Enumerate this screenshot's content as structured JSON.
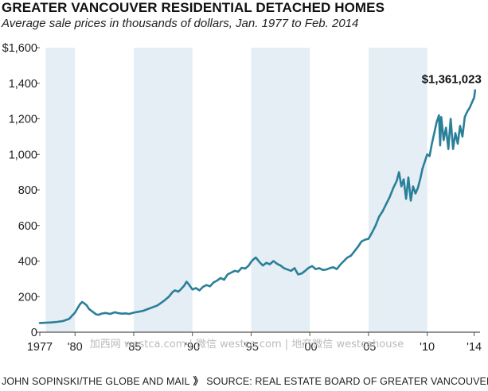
{
  "title": "GREATER VANCOUVER RESIDENTIAL DETACHED HOMES",
  "subtitle": "Average sale prices in thousands of dollars, Jan. 1977 to Feb. 2014",
  "footer": {
    "credit": "JOHN SOPINSKI/THE GLOBE AND MAIL",
    "separator": "》",
    "source": "SOURCE: REAL ESTATE BOARD OF GREATER VANCOUVER"
  },
  "watermark": "加西网 westca.com | 微信 westca.com | 地产微信 westcahouse",
  "colors": {
    "line": "#2a7f99",
    "band": "#e4eef4",
    "axis": "#555555",
    "gridline": "#eeeeee"
  },
  "chart_data": {
    "type": "line",
    "title": "GREATER VANCOUVER RESIDENTIAL DETACHED HOMES",
    "subtitle": "Average sale prices in thousands of dollars, Jan. 1977 to Feb. 2014",
    "xlabel": "",
    "ylabel": "",
    "xlim": [
      1977,
      2014.5
    ],
    "ylim": [
      0,
      1600
    ],
    "x_ticks": [
      1977,
      1980,
      1985,
      1990,
      1995,
      2000,
      2005,
      2010,
      2014
    ],
    "x_tick_labels": [
      "1977",
      "'80",
      "'85",
      "'90",
      "'95",
      "'00",
      "'05",
      "'10",
      "'14"
    ],
    "y_ticks": [
      0,
      200,
      400,
      600,
      800,
      1000,
      1200,
      1400,
      1600
    ],
    "y_tick_labels": [
      "0",
      "200",
      "400",
      "600",
      "800",
      "1,000",
      "1,200",
      "1,400",
      "$1,600"
    ],
    "grid": false,
    "shaded_periods": [
      [
        1977.5,
        1980
      ],
      [
        1985,
        1990
      ],
      [
        1995,
        2000
      ],
      [
        2005,
        2010
      ]
    ],
    "annotation": {
      "text": "$1,361,023",
      "x": 2014.08,
      "y": 1361.023
    },
    "series": [
      {
        "x": [
          1977.0,
          1977.5,
          1978.0,
          1978.5,
          1979.0,
          1979.5,
          1980.0,
          1980.4,
          1980.6,
          1980.8,
          1981.0,
          1981.2,
          1981.5,
          1981.8,
          1982.0,
          1982.3,
          1982.6,
          1983.0,
          1983.4,
          1983.7,
          1984.0,
          1984.3,
          1984.6,
          1985.0,
          1985.4,
          1985.8,
          1986.2,
          1986.6,
          1987.0,
          1987.3,
          1987.6,
          1988.0,
          1988.3,
          1988.5,
          1988.8,
          1989.0,
          1989.3,
          1989.5,
          1989.7,
          1990.0,
          1990.3,
          1990.6,
          1990.9,
          1991.2,
          1991.5,
          1991.8,
          1992.1,
          1992.4,
          1992.7,
          1993.0,
          1993.3,
          1993.6,
          1993.9,
          1994.2,
          1994.5,
          1994.8,
          1995.0,
          1995.2,
          1995.4,
          1995.7,
          1996.0,
          1996.3,
          1996.6,
          1996.9,
          1997.2,
          1997.5,
          1997.8,
          1998.1,
          1998.4,
          1998.7,
          1999.0,
          1999.3,
          1999.6,
          1999.9,
          2000.2,
          2000.5,
          2000.8,
          2001.1,
          2001.4,
          2001.7,
          2002.0,
          2002.3,
          2002.6,
          2002.9,
          2003.2,
          2003.5,
          2003.8,
          2004.1,
          2004.4,
          2004.7,
          2005.0,
          2005.3,
          2005.6,
          2005.9,
          2006.2,
          2006.5,
          2006.8,
          2007.1,
          2007.4,
          2007.6,
          2007.8,
          2008.0,
          2008.2,
          2008.4,
          2008.6,
          2008.8,
          2009.0,
          2009.2,
          2009.4,
          2009.6,
          2009.8,
          2010.0,
          2010.2,
          2010.4,
          2010.6,
          2010.8,
          2011.0,
          2011.1,
          2011.2,
          2011.4,
          2011.6,
          2011.8,
          2012.0,
          2012.2,
          2012.4,
          2012.6,
          2012.8,
          2013.0,
          2013.2,
          2013.4,
          2013.6,
          2013.8,
          2014.0,
          2014.08
        ],
        "values": [
          52,
          53,
          55,
          58,
          63,
          75,
          110,
          155,
          170,
          162,
          150,
          130,
          115,
          100,
          98,
          105,
          108,
          103,
          112,
          107,
          104,
          106,
          103,
          110,
          115,
          120,
          130,
          140,
          150,
          163,
          178,
          200,
          225,
          235,
          228,
          240,
          262,
          284,
          268,
          240,
          248,
          235,
          255,
          265,
          258,
          280,
          290,
          305,
          295,
          325,
          335,
          345,
          340,
          362,
          358,
          375,
          395,
          410,
          420,
          395,
          375,
          390,
          382,
          400,
          385,
          375,
          360,
          352,
          345,
          360,
          325,
          330,
          345,
          362,
          372,
          355,
          360,
          350,
          352,
          360,
          365,
          355,
          380,
          400,
          420,
          430,
          455,
          480,
          510,
          520,
          525,
          560,
          600,
          650,
          680,
          720,
          760,
          810,
          850,
          900,
          820,
          860,
          750,
          870,
          740,
          820,
          780,
          810,
          860,
          920,
          960,
          1000,
          990,
          1060,
          1120,
          1180,
          1220,
          1050,
          1210,
          1080,
          1150,
          1030,
          1200,
          1030,
          1120,
          1060,
          1160,
          1100,
          1210,
          1240,
          1260,
          1290,
          1320,
          1361
        ]
      }
    ]
  }
}
